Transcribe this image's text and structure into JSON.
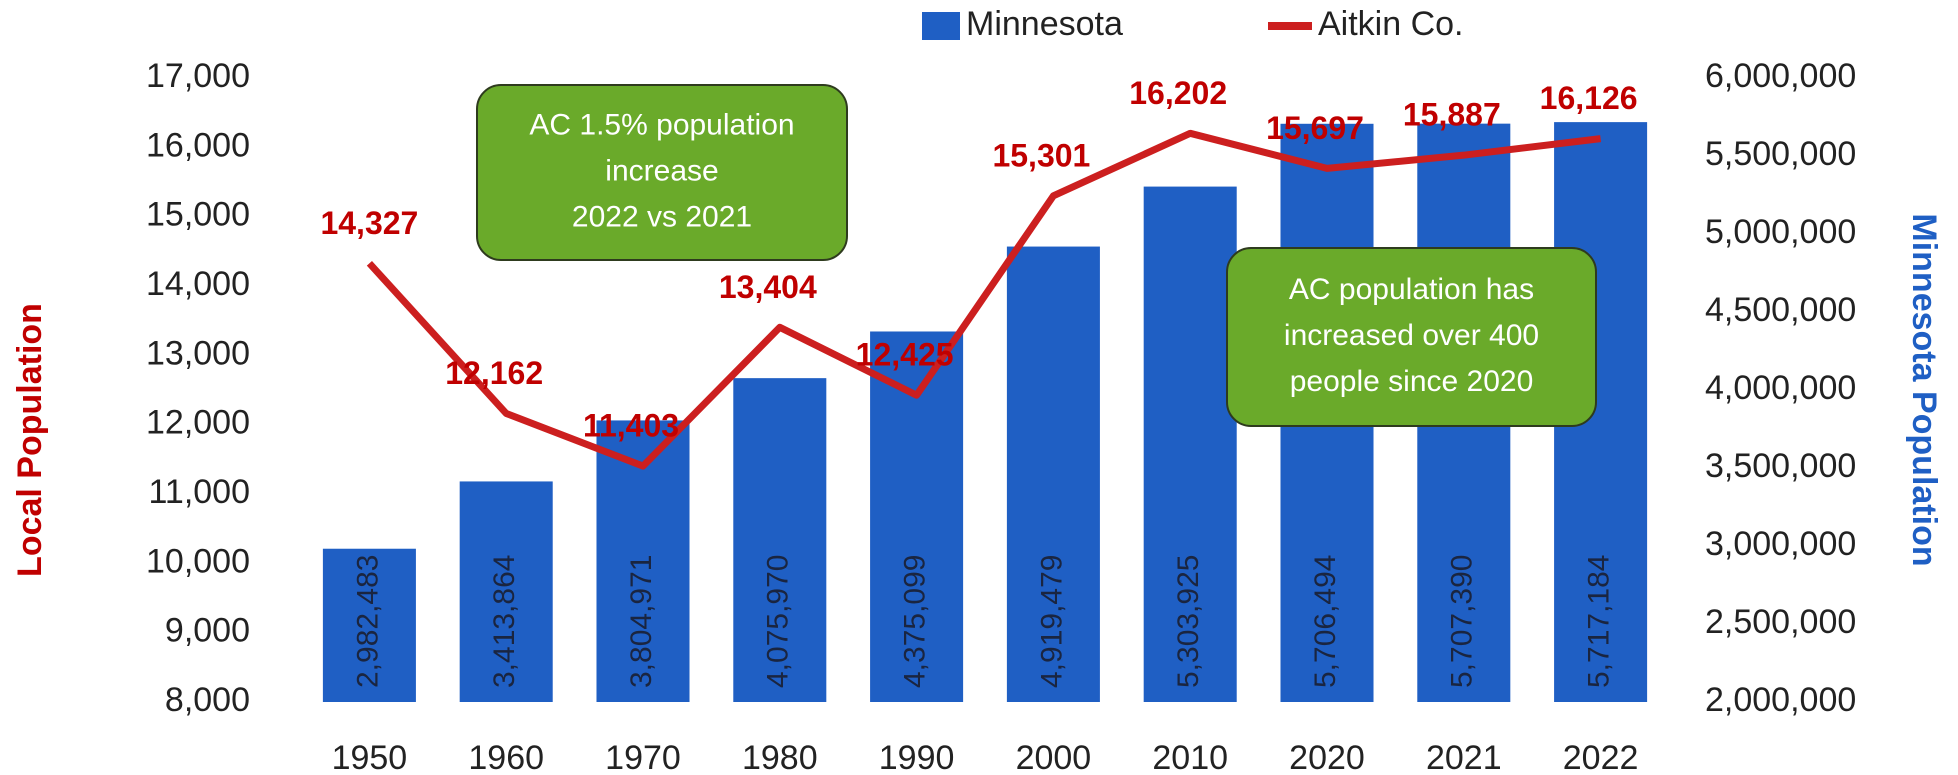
{
  "chart_data": {
    "type": "bar_line",
    "categories": [
      "1950",
      "1960",
      "1970",
      "1980",
      "1990",
      "2000",
      "2010",
      "2020",
      "2021",
      "2022"
    ],
    "series": [
      {
        "name": "Minnesota",
        "type": "bar",
        "axis": "y2",
        "color": "#1f5fc4",
        "values": [
          2982483,
          3413864,
          3804971,
          4075970,
          4375099,
          4919479,
          5303925,
          5706494,
          5707390,
          5717184
        ],
        "value_labels": [
          "2,982,483",
          "3,413,864",
          "3,804,971",
          "4,075,970",
          "4,375,099",
          "4,919,479",
          "5,303,925",
          "5,706,494",
          "5,707,390",
          "5,717,184"
        ]
      },
      {
        "name": "Aitkin Co.",
        "type": "line",
        "axis": "y",
        "color": "#cc1f1f",
        "values": [
          14327,
          12162,
          11403,
          13404,
          12425,
          15301,
          16202,
          15697,
          15887,
          16126
        ],
        "value_labels": [
          "14,327",
          "12,162",
          "11,403",
          "13,404",
          "12,425",
          "15,301",
          "16,202",
          "15,697",
          "15,887",
          "16,126"
        ]
      }
    ],
    "y_label": "Local Population",
    "y2_label": "Minnesota Population",
    "ylim": [
      8000,
      17000
    ],
    "yticks": [
      {
        "value": 8000,
        "label": "8,000"
      },
      {
        "value": 9000,
        "label": "9,000"
      },
      {
        "value": 10000,
        "label": "10,000"
      },
      {
        "value": 11000,
        "label": "11,000"
      },
      {
        "value": 12000,
        "label": "12,000"
      },
      {
        "value": 13000,
        "label": "13,000"
      },
      {
        "value": 14000,
        "label": "14,000"
      },
      {
        "value": 15000,
        "label": "15,000"
      },
      {
        "value": 16000,
        "label": "16,000"
      },
      {
        "value": 17000,
        "label": "17,000"
      }
    ],
    "y2lim": [
      2000000,
      6000000
    ],
    "y2ticks": [
      {
        "value": 2000000,
        "label": "2,000,000"
      },
      {
        "value": 2500000,
        "label": "2,500,000"
      },
      {
        "value": 3000000,
        "label": "3,000,000"
      },
      {
        "value": 3500000,
        "label": "3,500,000"
      },
      {
        "value": 4000000,
        "label": "4,000,000"
      },
      {
        "value": 4500000,
        "label": "4,500,000"
      },
      {
        "value": 5000000,
        "label": "5,000,000"
      },
      {
        "value": 5500000,
        "label": "5,500,000"
      },
      {
        "value": 6000000,
        "label": "6,000,000"
      }
    ],
    "annotations": [
      {
        "lines": [
          "AC 1.5% population",
          "increase",
          "2022 vs 2021"
        ]
      },
      {
        "lines": [
          "AC population has",
          "increased over 400",
          "people since 2020"
        ]
      }
    ]
  }
}
